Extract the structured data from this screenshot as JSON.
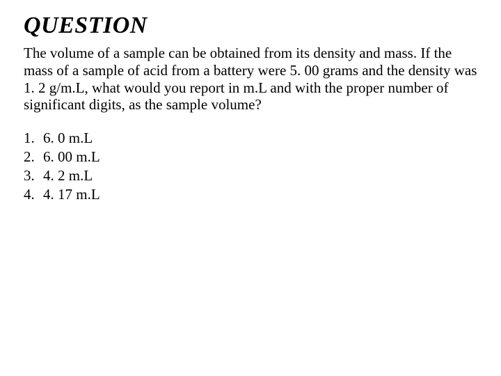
{
  "heading": "QUESTION",
  "body": "The volume of a sample can be obtained from its density and mass. If the mass of a sample of acid from a battery were 5. 00 grams and the density was 1. 2  g/m.L, what would you report in m.L and with the proper number of significant digits, as the sample volume?",
  "options": [
    {
      "num": "1.",
      "text": "6. 0 m.L"
    },
    {
      "num": "2.",
      "text": "6. 00 m.L"
    },
    {
      "num": "3.",
      "text": "4. 2 m.L"
    },
    {
      "num": "4.",
      "text": "4. 17 m.L"
    }
  ],
  "style": {
    "background_color": "#ffffff",
    "text_color": "#000000",
    "font_family": "Times New Roman",
    "heading_fontsize": 34,
    "body_fontsize": 21
  }
}
